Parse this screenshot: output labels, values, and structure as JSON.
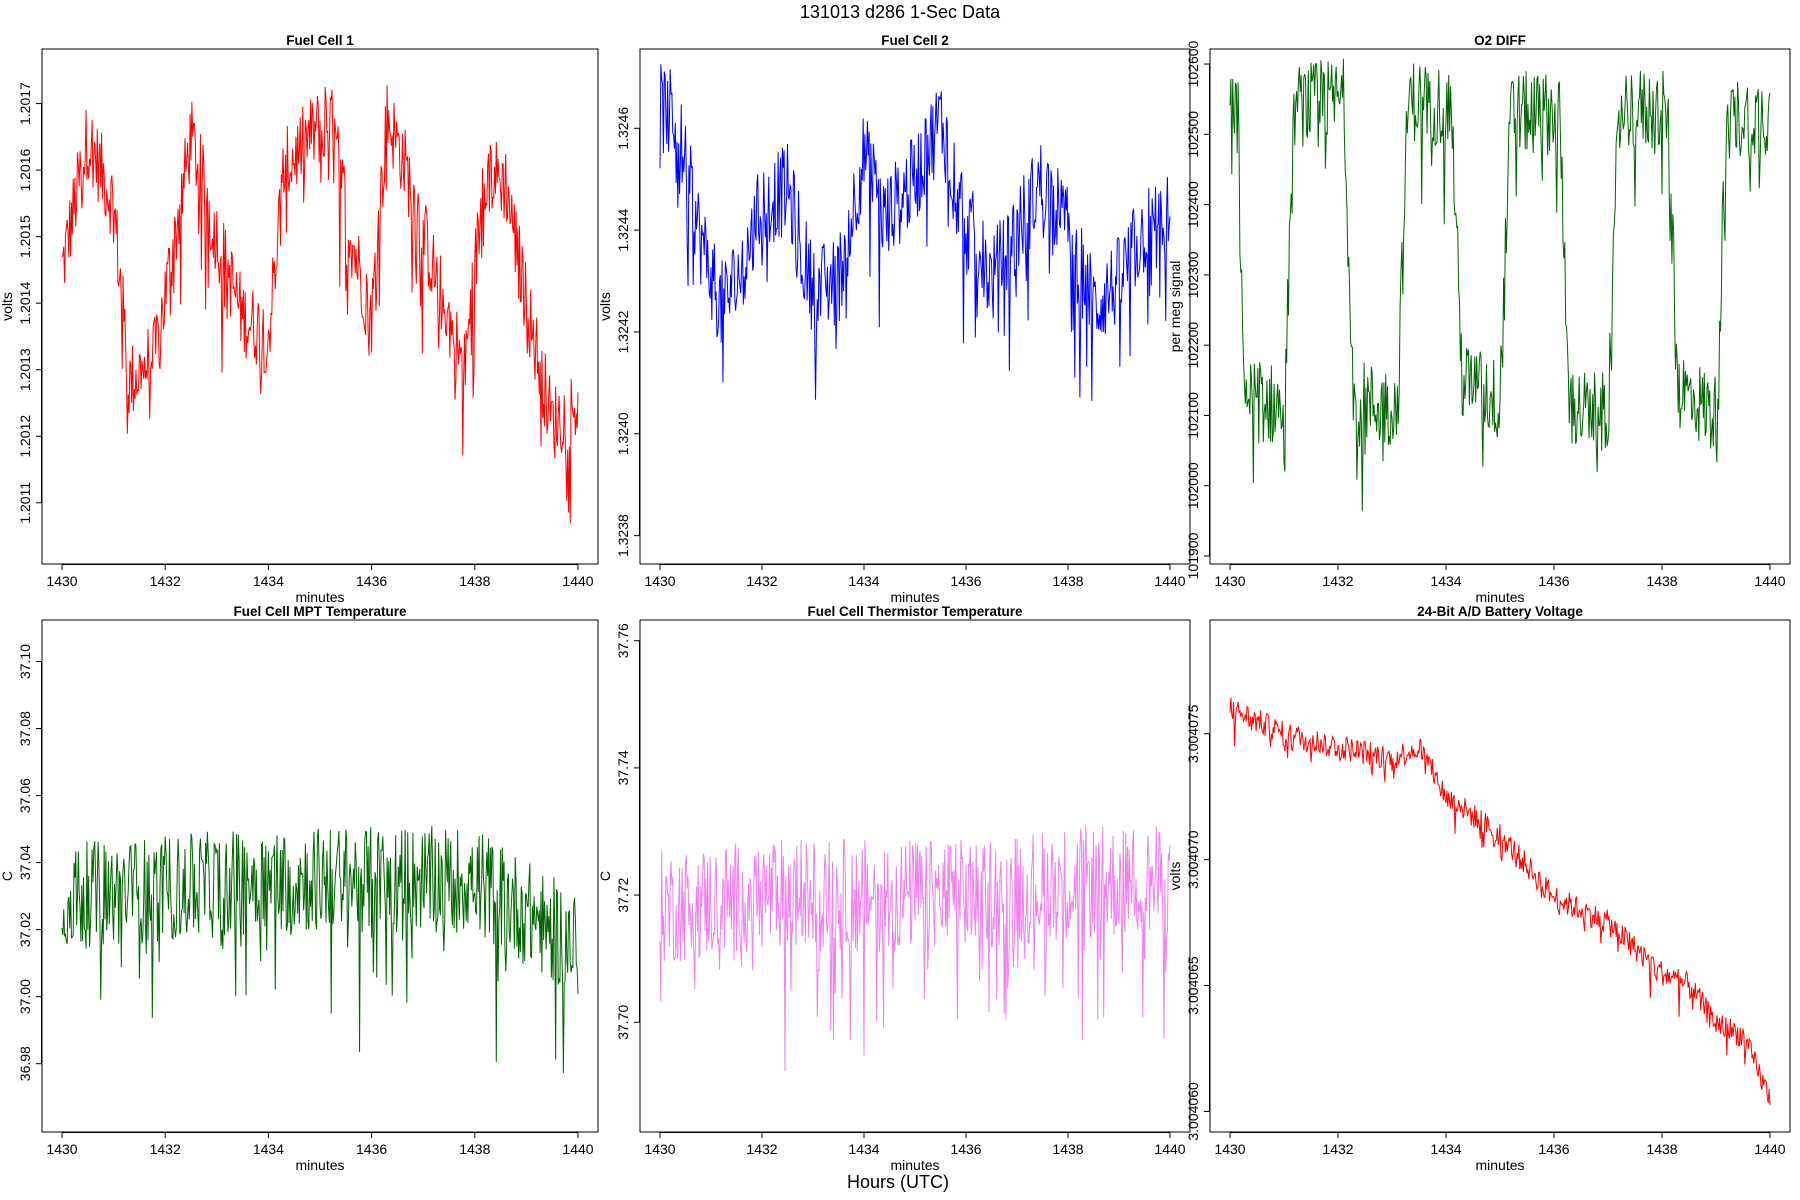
{
  "figure": {
    "suptitle": "131013   d286   1-Sec Data",
    "global_xlabel": "Hours (UTC)"
  },
  "chart_data": [
    {
      "type": "line",
      "title": "Fuel Cell 1",
      "xlabel": "minutes",
      "ylabel": "volts",
      "color": "#ff0000",
      "xlim": [
        1430,
        1440
      ],
      "ylim": [
        1.20102,
        1.20177
      ],
      "xticks": [
        1430,
        1432,
        1434,
        1436,
        1438,
        1440
      ],
      "xtick_labels": [
        "1430",
        "1432",
        "1434",
        "1436",
        "1438",
        "1440"
      ],
      "yticks": [
        1.2011,
        1.2012,
        1.2013,
        1.2014,
        1.2015,
        1.2016,
        1.2017
      ],
      "ytick_labels": [
        "1.2011",
        "1.2012",
        "1.2013",
        "1.2014",
        "1.2015",
        "1.2016",
        "1.2017"
      ],
      "series": [
        {
          "name": "Fuel Cell 1",
          "x": [
            1430.0,
            1430.5,
            1431.0,
            1431.3,
            1431.8,
            1432.3,
            1432.5,
            1433.0,
            1433.5,
            1434.0,
            1434.3,
            1434.8,
            1435.2,
            1435.6,
            1436.0,
            1436.3,
            1436.6,
            1437.2,
            1437.8,
            1438.2,
            1438.6,
            1439.0,
            1439.5,
            1440.0
          ],
          "values": [
            1.20145,
            1.20165,
            1.20155,
            1.20128,
            1.20132,
            1.20155,
            1.20165,
            1.2015,
            1.20138,
            1.20135,
            1.2016,
            1.20165,
            1.20168,
            1.2015,
            1.20138,
            1.20168,
            1.20162,
            1.20145,
            1.2013,
            1.2016,
            1.20158,
            1.2014,
            1.20122,
            1.20125
          ],
          "amp": 0.00012
        }
      ]
    },
    {
      "type": "line",
      "title": "Fuel Cell 2",
      "xlabel": "minutes",
      "ylabel": "volts",
      "color": "#0000ff",
      "xlim": [
        1430,
        1440
      ],
      "ylim": [
        1.32376,
        1.32474
      ],
      "xticks": [
        1430,
        1432,
        1434,
        1436,
        1438,
        1440
      ],
      "xtick_labels": [
        "1430",
        "1432",
        "1434",
        "1436",
        "1438",
        "1440"
      ],
      "yticks": [
        1.3238,
        1.324,
        1.3242,
        1.3244,
        1.3246
      ],
      "ytick_labels": [
        "1.3238",
        "1.3240",
        "1.3242",
        "1.3244",
        "1.3246"
      ],
      "series": [
        {
          "name": "Fuel Cell 2",
          "x": [
            1430.0,
            1430.3,
            1430.8,
            1431.2,
            1431.6,
            1432.0,
            1432.5,
            1433.0,
            1433.5,
            1434.0,
            1434.4,
            1435.0,
            1435.5,
            1436.0,
            1436.5,
            1437.0,
            1437.5,
            1438.0,
            1438.5,
            1439.0,
            1439.5,
            1440.0
          ],
          "values": [
            1.32464,
            1.32462,
            1.32438,
            1.32425,
            1.32432,
            1.32445,
            1.32448,
            1.32428,
            1.3243,
            1.32455,
            1.32442,
            1.3245,
            1.32462,
            1.32442,
            1.3243,
            1.3244,
            1.3245,
            1.3244,
            1.32425,
            1.3243,
            1.3244,
            1.32442
          ],
          "amp": 0.00018
        }
      ]
    },
    {
      "type": "line",
      "title": "O2 DIFF",
      "xlabel": "minutes",
      "ylabel": "per meg signal",
      "color": "#006400",
      "xlim": [
        1430,
        1440
      ],
      "ylim": [
        101900,
        102610
      ],
      "xticks": [
        1430,
        1432,
        1434,
        1436,
        1438,
        1440
      ],
      "xtick_labels": [
        "1430",
        "1432",
        "1434",
        "1436",
        "1438",
        "1440"
      ],
      "yticks": [
        101900,
        102000,
        102100,
        102200,
        102300,
        102400,
        102500,
        102600
      ],
      "ytick_labels": [
        "101900",
        "102000",
        "102100",
        "102200",
        "102300",
        "102400",
        "102500",
        "102600"
      ],
      "series": [
        {
          "name": "O2 DIFF",
          "x": [
            1430.0,
            1430.15,
            1430.25,
            1431.0,
            1431.2,
            1432.1,
            1432.3,
            1433.1,
            1433.3,
            1434.1,
            1434.3,
            1435.0,
            1435.2,
            1436.1,
            1436.3,
            1437.0,
            1437.2,
            1438.1,
            1438.3,
            1439.0,
            1439.2,
            1440.0
          ],
          "values": [
            102550,
            102520,
            102130,
            102110,
            102540,
            102550,
            102120,
            102110,
            102550,
            102540,
            102150,
            102120,
            102530,
            102530,
            102110,
            102100,
            102540,
            102530,
            102140,
            102100,
            102520,
            102530
          ],
          "amp": 120
        }
      ]
    },
    {
      "type": "line",
      "title": "Fuel Cell MPT Temperature",
      "xlabel": "minutes",
      "ylabel": "C",
      "color": "#006400",
      "xlim": [
        1430,
        1440
      ],
      "ylim": [
        36.962,
        37.11
      ],
      "xticks": [
        1430,
        1432,
        1434,
        1436,
        1438,
        1440
      ],
      "xtick_labels": [
        "1430",
        "1432",
        "1434",
        "1436",
        "1438",
        "1440"
      ],
      "yticks": [
        36.98,
        37.0,
        37.02,
        37.04,
        37.06,
        37.08,
        37.1
      ],
      "ytick_labels": [
        "36.98",
        "37.00",
        "37.02",
        "37.04",
        "37.06",
        "37.08",
        "37.10"
      ],
      "series": [
        {
          "name": "Fuel Cell MPT Temperature",
          "x": [
            1430,
            1432,
            1434,
            1436,
            1438,
            1440
          ],
          "values": [
            37.03,
            37.032,
            37.035,
            37.035,
            37.035,
            37.015
          ],
          "amp": 0.032
        }
      ]
    },
    {
      "type": "line",
      "title": "Fuel Cell Thermistor Temperature",
      "xlabel": "minutes",
      "ylabel": "C",
      "color": "#ee82ee",
      "xlim": [
        1430,
        1440
      ],
      "ylim": [
        37.684,
        37.762
      ],
      "xticks": [
        1430,
        1432,
        1434,
        1436,
        1438,
        1440
      ],
      "xtick_labels": [
        "1430",
        "1432",
        "1434",
        "1436",
        "1438",
        "1440"
      ],
      "yticks": [
        37.7,
        37.72,
        37.74,
        37.76
      ],
      "ytick_labels": [
        "37.70",
        "37.72",
        "37.74",
        "37.76"
      ],
      "series": [
        {
          "name": "Fuel Cell Thermistor Temperature",
          "x": [
            1430,
            1432,
            1434,
            1436,
            1438,
            1440
          ],
          "values": [
            37.718,
            37.72,
            37.72,
            37.72,
            37.722,
            37.722
          ],
          "amp": 0.018
        }
      ]
    },
    {
      "type": "line",
      "title": "24-Bit A/D Battery Voltage",
      "xlabel": "minutes",
      "ylabel": "volts",
      "color": "#ff0000",
      "xlim": [
        1430,
        1440
      ],
      "ylim": [
        3.0040595,
        3.0040792
      ],
      "xticks": [
        1430,
        1432,
        1434,
        1436,
        1438,
        1440
      ],
      "xtick_labels": [
        "1430",
        "1432",
        "1434",
        "1436",
        "1438",
        "1440"
      ],
      "yticks": [
        3.00406,
        3.004065,
        3.00407,
        3.004075
      ],
      "ytick_labels": [
        "3.004060",
        "3.004065",
        "3.004070",
        "3.004075"
      ],
      "series": [
        {
          "name": "24-Bit A/D Battery Voltage",
          "x": [
            1430.0,
            1431.0,
            1432.0,
            1433.0,
            1433.5,
            1434.0,
            1435.0,
            1436.0,
            1437.0,
            1438.0,
            1438.5,
            1439.0,
            1439.5,
            1440.0
          ],
          "values": [
            3.004076,
            3.004075,
            3.0040745,
            3.004074,
            3.0040745,
            3.0040725,
            3.004071,
            3.0040685,
            3.0040675,
            3.0040655,
            3.004065,
            3.0040635,
            3.004063,
            3.0040605
          ],
          "amp": 1e-06
        }
      ]
    }
  ]
}
